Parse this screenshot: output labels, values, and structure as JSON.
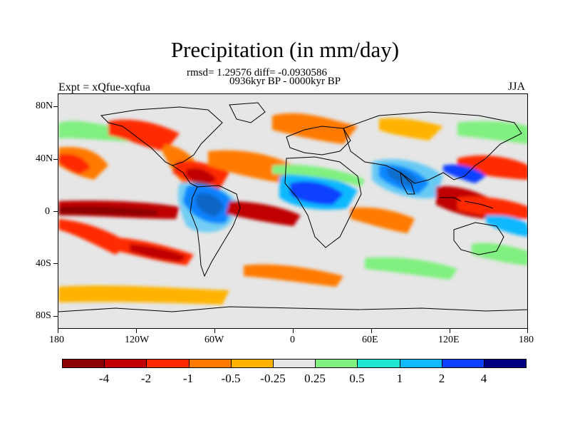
{
  "figure": {
    "title": "Precipitation (in mm/day)",
    "stats": "rmsd= 1.29576 diff= -0.0930586",
    "period": "0936kyr BP - 0000kyr BP",
    "experiment": "Expt = xQfue-xqfua",
    "season": "JJA"
  },
  "map": {
    "type": "world-map-anomaly",
    "projection": "cylindrical-equidistant",
    "lon_range": [
      -180,
      180
    ],
    "lat_range": [
      -90,
      90
    ],
    "x_tick_labels": [
      "180",
      "120W",
      "60W",
      "0",
      "60E",
      "120E",
      "180"
    ],
    "y_tick_labels": [
      "80N",
      "40N",
      "0",
      "40S",
      "80S"
    ]
  },
  "colorbar": {
    "labels": [
      "-4",
      "-2",
      "-1",
      "-0.5",
      "-0.25",
      "0.25",
      "0.5",
      "1",
      "2",
      "4"
    ],
    "colors": [
      "#8b0000",
      "#c00000",
      "#ff2a00",
      "#ff7a00",
      "#ffb300",
      "#e6e6e6",
      "#80f080",
      "#20e8d0",
      "#10b8ff",
      "#1040ff",
      "#000080"
    ]
  }
}
